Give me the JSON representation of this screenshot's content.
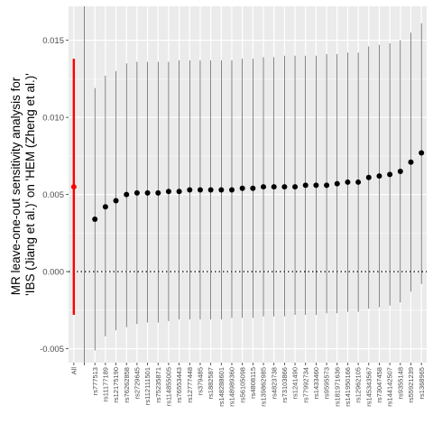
{
  "chart_data": {
    "type": "scatter",
    "style": "forest-plot (point estimate with 95% interval per category)",
    "ylabel_lines": [
      "MR leave-one-out sensitivity analysis for",
      "'IBS (Jiang et al.)' on 'HEM (Zheng et al.)'"
    ],
    "xlabel": "",
    "ylim": [
      -0.0059,
      0.0172
    ],
    "yticks": [
      -0.005,
      0.0,
      0.005,
      0.01,
      0.015
    ],
    "ytick_labels": [
      "-0.005",
      "0.000",
      "0.005",
      "0.010",
      "0.015"
    ],
    "reference_line_y": 0,
    "reference_line_style": "dotted",
    "grid": true,
    "colors": {
      "panel_bg": "#ebebeb",
      "grid": "#ffffff",
      "point": "#000000",
      "highlight": "#ff0000",
      "tick_text": "#4d4d4d"
    },
    "highlight_category": "All",
    "categories": [
      "All",
      "",
      "rs777513",
      "rs11177189",
      "rs12175190",
      "rs76262858",
      "rs2729645",
      "rs112111501",
      "rs75235871",
      "rs114855005",
      "rs76553443",
      "rs12777448",
      "rs379485",
      "rs1882587",
      "rs148288601",
      "rs148989360",
      "rs56105098",
      "rs4808115",
      "rs139862985",
      "rs4823738",
      "rs73103866",
      "rs1241490",
      "rs77992734",
      "rs1433460",
      "rs9595573",
      "rs181971636",
      "rs141950166",
      "rs12962105",
      "rs145343567",
      "rs73047458",
      "rs144142507",
      "rs9355148",
      "rs55921239",
      "rs1368965"
    ],
    "estimates": [
      0.0055,
      null,
      0.0034,
      0.0042,
      0.0046,
      0.005,
      0.0051,
      0.0051,
      0.0051,
      0.0052,
      0.0052,
      0.0053,
      0.0053,
      0.0053,
      0.0053,
      0.0053,
      0.0054,
      0.0054,
      0.0055,
      0.0055,
      0.0055,
      0.0055,
      0.0056,
      0.0056,
      0.0056,
      0.0057,
      0.0058,
      0.0058,
      0.0061,
      0.0062,
      0.0063,
      0.0065,
      0.0071,
      0.0077
    ],
    "lower": [
      -0.0028,
      null,
      -0.0051,
      -0.0042,
      -0.0038,
      -0.0036,
      -0.0034,
      -0.0033,
      -0.0033,
      -0.0032,
      -0.0031,
      -0.0031,
      -0.0031,
      -0.0031,
      -0.0031,
      -0.003,
      -0.003,
      -0.003,
      -0.0029,
      -0.0029,
      -0.0029,
      -0.0028,
      -0.0028,
      -0.0028,
      -0.0027,
      -0.0027,
      -0.0026,
      -0.0026,
      -0.0024,
      -0.0023,
      -0.0022,
      -0.002,
      -0.0013,
      -0.0008
    ],
    "upper": [
      0.0138,
      null,
      0.0119,
      0.0127,
      0.013,
      0.0135,
      0.0136,
      0.0136,
      0.0136,
      0.0136,
      0.0137,
      0.0137,
      0.0137,
      0.0137,
      0.0137,
      0.0137,
      0.0138,
      0.0138,
      0.0139,
      0.0139,
      0.014,
      0.014,
      0.014,
      0.014,
      0.0141,
      0.0141,
      0.0142,
      0.0142,
      0.0146,
      0.0147,
      0.0148,
      0.015,
      0.0155,
      0.0161
    ],
    "full_span_category": ""
  }
}
